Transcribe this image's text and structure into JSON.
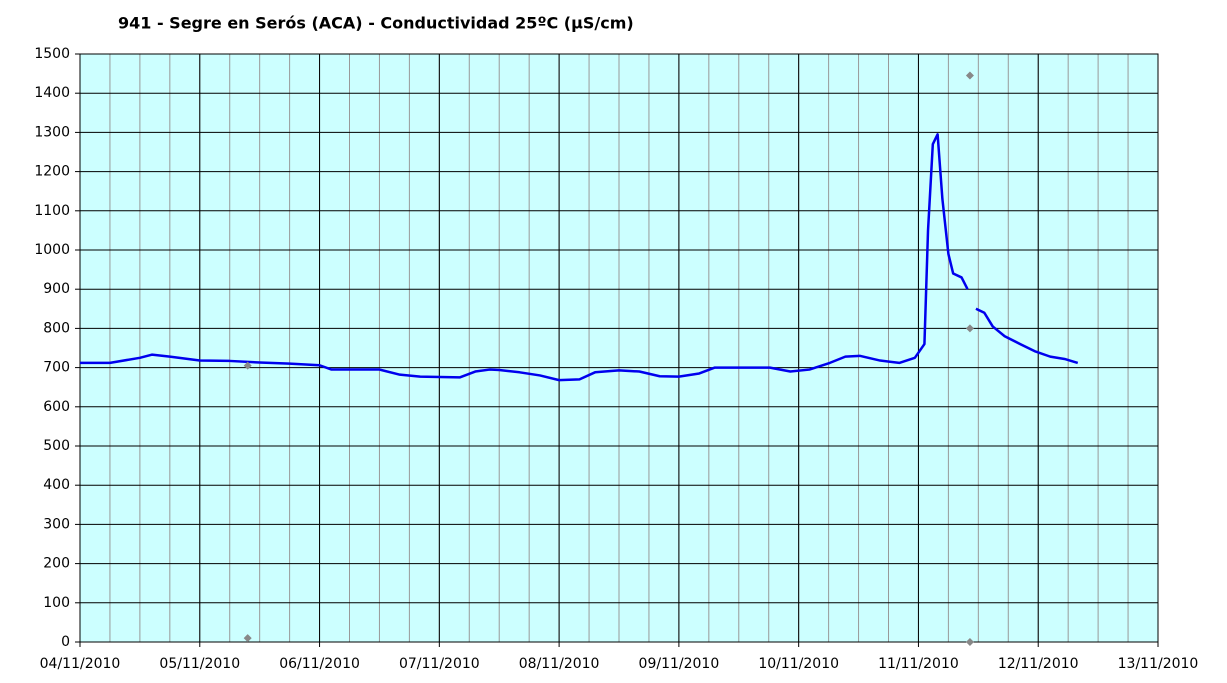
{
  "chart_data": {
    "type": "line",
    "title": "941 - Segre en Serós (ACA) - Conductividad 25ºC (µS/cm)",
    "xlim": [
      0,
      9
    ],
    "xticks": [
      {
        "value": 0,
        "label": "04/11/2010"
      },
      {
        "value": 1,
        "label": "05/11/2010"
      },
      {
        "value": 2,
        "label": "06/11/2010"
      },
      {
        "value": 3,
        "label": "07/11/2010"
      },
      {
        "value": 4,
        "label": "08/11/2010"
      },
      {
        "value": 5,
        "label": "09/11/2010"
      },
      {
        "value": 6,
        "label": "10/11/2010"
      },
      {
        "value": 7,
        "label": "11/11/2010"
      },
      {
        "value": 8,
        "label": "12/11/2010"
      },
      {
        "value": 9,
        "label": "13/11/2010"
      }
    ],
    "x_minor_step": 0.25,
    "ylim": [
      0,
      1500
    ],
    "yticks": [
      0,
      100,
      200,
      300,
      400,
      500,
      600,
      700,
      800,
      900,
      1000,
      1100,
      1200,
      1300,
      1400,
      1500
    ],
    "grid": true,
    "background": "#ccffff",
    "series": [
      {
        "color": "#0000ee",
        "x": [
          0,
          0.25,
          0.5,
          0.6,
          0.75,
          1.0,
          1.25,
          1.5,
          1.75,
          2.0,
          2.1,
          2.5,
          2.67,
          2.84,
          3.17,
          3.3,
          3.42,
          3.5,
          3.67,
          3.84,
          4.0,
          4.17,
          4.3,
          4.5,
          4.67,
          4.84,
          5.0,
          5.17,
          5.3,
          5.5,
          5.76,
          5.93,
          6.09,
          6.26,
          6.39,
          6.51,
          6.68,
          6.84,
          6.97,
          7.05,
          7.08,
          7.12,
          7.16,
          7.2,
          7.25,
          7.29,
          7.36,
          7.41,
          7.45,
          7.48,
          7.55,
          7.62,
          7.72,
          7.85,
          7.97,
          8.1,
          8.22,
          8.33
        ],
        "values": [
          712,
          712,
          725,
          733,
          728,
          718,
          717,
          713,
          710,
          706,
          695,
          695,
          682,
          677,
          675,
          690,
          695,
          694,
          688,
          680,
          668,
          670,
          688,
          693,
          690,
          678,
          677,
          685,
          700,
          700,
          700,
          690,
          695,
          712,
          728,
          730,
          718,
          712,
          725,
          760,
          1050,
          1270,
          1295,
          1130,
          990,
          940,
          930,
          900,
          null,
          850,
          840,
          805,
          780,
          760,
          742,
          728,
          722,
          712
        ]
      },
      {
        "color": "#888888",
        "mode": "markers",
        "x": [
          1.4,
          1.4,
          7.43,
          7.43,
          7.43
        ],
        "values": [
          705,
          10,
          1445,
          800,
          0
        ]
      }
    ]
  }
}
